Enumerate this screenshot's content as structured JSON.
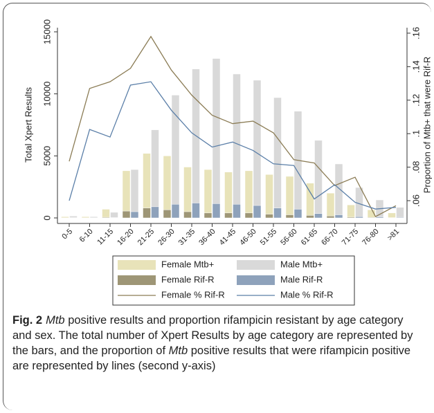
{
  "chart_data": {
    "type": "bar",
    "categories": [
      "0-5",
      "6-10",
      "11-15",
      "16-20",
      "21-25",
      "26-30",
      "31-35",
      "36-40",
      "41-45",
      "46-50",
      "51-55",
      "56-60",
      "61-65",
      "66-70",
      "71-75",
      "76-80",
      ">81"
    ],
    "y_label": "Total Xpert Results",
    "y2_label": "Proportion of Mtb+ that were Rif-R",
    "ylim": [
      0,
      15000
    ],
    "yticks": [
      0,
      5000,
      10000,
      15000
    ],
    "y2lim": [
      0.0497,
      0.1608
    ],
    "y2ticks": [
      {
        "value": 0.06,
        "label": ".06"
      },
      {
        "value": 0.08,
        "label": ".08"
      },
      {
        "value": 0.1,
        "label": ".1"
      },
      {
        "value": 0.12,
        "label": ".12"
      },
      {
        "value": 0.14,
        "label": ".14"
      },
      {
        "value": 0.16,
        "label": ".16"
      }
    ],
    "series": [
      {
        "name": "Female Mtb+",
        "type": "bar",
        "group": "female",
        "color": "#e8e3b9",
        "values": [
          100,
          100,
          700,
          3800,
          5200,
          5000,
          4100,
          3900,
          3700,
          3800,
          3500,
          3350,
          2800,
          2000,
          1050,
          650,
          400
        ]
      },
      {
        "name": "Male Mtb+",
        "type": "bar",
        "group": "male",
        "color": "#d9d9d9",
        "values": [
          150,
          100,
          450,
          3900,
          7100,
          9900,
          12000,
          12850,
          11600,
          11100,
          9700,
          8600,
          6250,
          4350,
          2450,
          1450,
          850
        ]
      },
      {
        "name": "Female Rif-R",
        "type": "bar",
        "group": "female",
        "color": "#9e9676",
        "values": [
          10,
          10,
          50,
          550,
          800,
          650,
          500,
          400,
          400,
          400,
          300,
          250,
          200,
          150,
          60,
          40,
          20
        ]
      },
      {
        "name": "Male Rif-R",
        "type": "bar",
        "group": "male",
        "color": "#8ea2bb",
        "values": [
          20,
          10,
          30,
          500,
          900,
          1100,
          1200,
          1150,
          1100,
          1000,
          800,
          700,
          350,
          250,
          100,
          80,
          50
        ]
      },
      {
        "name": "Female % Rif-R",
        "type": "line",
        "axis": "y2",
        "color": "#8b7c55",
        "values": [
          0.0835,
          0.127,
          0.131,
          0.139,
          0.158,
          0.138,
          0.123,
          0.111,
          0.106,
          0.1075,
          0.1005,
          0.0845,
          0.0825,
          0.069,
          0.074,
          0.0505,
          0.057
        ]
      },
      {
        "name": "Male % Rif-R",
        "type": "line",
        "axis": "y2",
        "color": "#5b7fa8",
        "values": [
          0.06,
          0.1025,
          0.098,
          0.129,
          0.131,
          0.114,
          0.1005,
          0.092,
          0.095,
          0.09,
          0.082,
          0.081,
          0.061,
          0.0695,
          0.059,
          0.055,
          0.056
        ]
      }
    ]
  },
  "caption": {
    "label": "Fig. 2",
    "runs": [
      {
        "text": "Mtb",
        "italic": true
      },
      {
        "text": " positive results and proportion rifampicin resistant by age category and sex. The total number of Xpert Results by age category are represented by the bars, and the proportion of ",
        "italic": false
      },
      {
        "text": "Mtb",
        "italic": true
      },
      {
        "text": " positive results that were rifampicin positive are represented by lines (second y-axis)",
        "italic": false
      }
    ]
  }
}
